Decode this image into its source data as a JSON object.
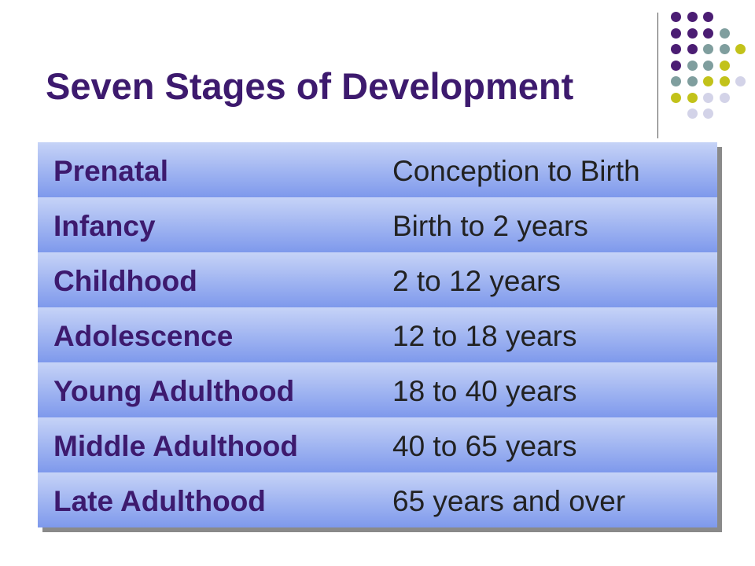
{
  "title": "Seven Stages of Development",
  "colors": {
    "title": "#3d1a6e",
    "row_top": "#c6d3f7",
    "row_bottom": "#7e99ec",
    "dot_purple": "#4b1d73",
    "dot_teal": "#7f9e9e",
    "dot_olive": "#c2c21a",
    "dot_lavender": "#d3d3e8"
  },
  "stages": [
    {
      "name": "Prenatal",
      "range": "Conception to Birth"
    },
    {
      "name": "Infancy",
      "range": "Birth to 2 years"
    },
    {
      "name": "Childhood",
      "range": "2 to 12 years"
    },
    {
      "name": "Adolescence",
      "range": "12 to 18 years"
    },
    {
      "name": "Young Adulthood",
      "range": "18 to 40 years"
    },
    {
      "name": "Middle Adulthood",
      "range": "40 to 65 years"
    },
    {
      "name": "Late Adulthood",
      "range": "65 years and over"
    }
  ],
  "decoration": {
    "icon": "dot-grid-icon",
    "rows": [
      [
        "purple",
        "purple",
        "purple",
        null,
        null
      ],
      [
        "purple",
        "purple",
        "purple",
        "teal",
        null
      ],
      [
        "purple",
        "purple",
        "teal",
        "teal",
        "olive"
      ],
      [
        "purple",
        "teal",
        "teal",
        "olive",
        null
      ],
      [
        "teal",
        "teal",
        "olive",
        "olive",
        "lavender"
      ],
      [
        "olive",
        "olive",
        "lavender",
        "lavender",
        null
      ],
      [
        null,
        "lavender",
        "lavender",
        null,
        null
      ]
    ]
  }
}
